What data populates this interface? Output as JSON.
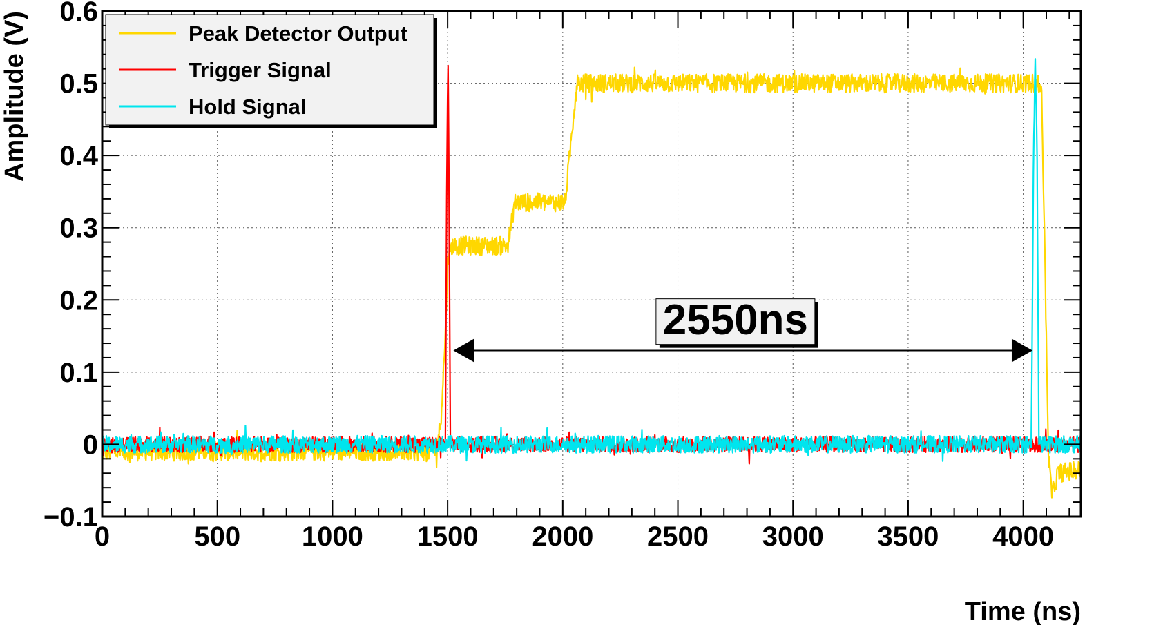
{
  "chart_data": {
    "type": "line",
    "title": "",
    "xlabel": "Time (ns)",
    "ylabel": "Amplitude (V)",
    "xlim": [
      0,
      4250
    ],
    "ylim": [
      -0.1,
      0.6
    ],
    "grid": true,
    "x_ticks": [
      {
        "value": 0,
        "label": "0"
      },
      {
        "value": 500,
        "label": "500"
      },
      {
        "value": 1000,
        "label": "1000"
      },
      {
        "value": 1500,
        "label": "1500"
      },
      {
        "value": 2000,
        "label": "2000"
      },
      {
        "value": 2500,
        "label": "2500"
      },
      {
        "value": 3000,
        "label": "3000"
      },
      {
        "value": 3500,
        "label": "3500"
      },
      {
        "value": 4000,
        "label": "4000"
      }
    ],
    "y_ticks": [
      {
        "value": -0.1,
        "label": "−0.1"
      },
      {
        "value": 0,
        "label": "0"
      },
      {
        "value": 0.1,
        "label": "0.1"
      },
      {
        "value": 0.2,
        "label": "0.2"
      },
      {
        "value": 0.3,
        "label": "0.3"
      },
      {
        "value": 0.4,
        "label": "0.4"
      },
      {
        "value": 0.5,
        "label": "0.5"
      },
      {
        "value": 0.6,
        "label": "0.6"
      }
    ],
    "legend_position": "top-left",
    "series": [
      {
        "name": "Peak Detector Output",
        "color": "#ffd700",
        "x": [
          0,
          1450,
          1470,
          1490,
          1500,
          1520,
          1760,
          1780,
          1790,
          2010,
          2030,
          2060,
          4060,
          4080,
          4110,
          4125,
          4150,
          4250
        ],
        "y": [
          -0.01,
          -0.01,
          0.03,
          0.15,
          0.26,
          0.275,
          0.275,
          0.31,
          0.335,
          0.335,
          0.4,
          0.5,
          0.5,
          0.49,
          -0.02,
          -0.07,
          -0.04,
          -0.035
        ]
      },
      {
        "name": "Trigger Signal",
        "color": "#ff0000",
        "x": [
          0,
          1490,
          1497,
          1502,
          1507,
          1512,
          4250
        ],
        "y": [
          0.0,
          0.0,
          0.4,
          0.525,
          0.3,
          0.0,
          0.0
        ]
      },
      {
        "name": "Hold Signal",
        "color": "#00e5ee",
        "x": [
          0,
          4035,
          4045,
          4052,
          4060,
          4068,
          4250
        ],
        "y": [
          0.0,
          0.0,
          0.42,
          0.525,
          0.4,
          0.0,
          0.0
        ]
      }
    ],
    "annotations": [
      {
        "type": "double-arrow",
        "x_start": 1525,
        "x_end": 4040,
        "y": 0.13
      },
      {
        "type": "text",
        "label": "2550ns",
        "x": 2750,
        "y": 0.17
      }
    ]
  }
}
